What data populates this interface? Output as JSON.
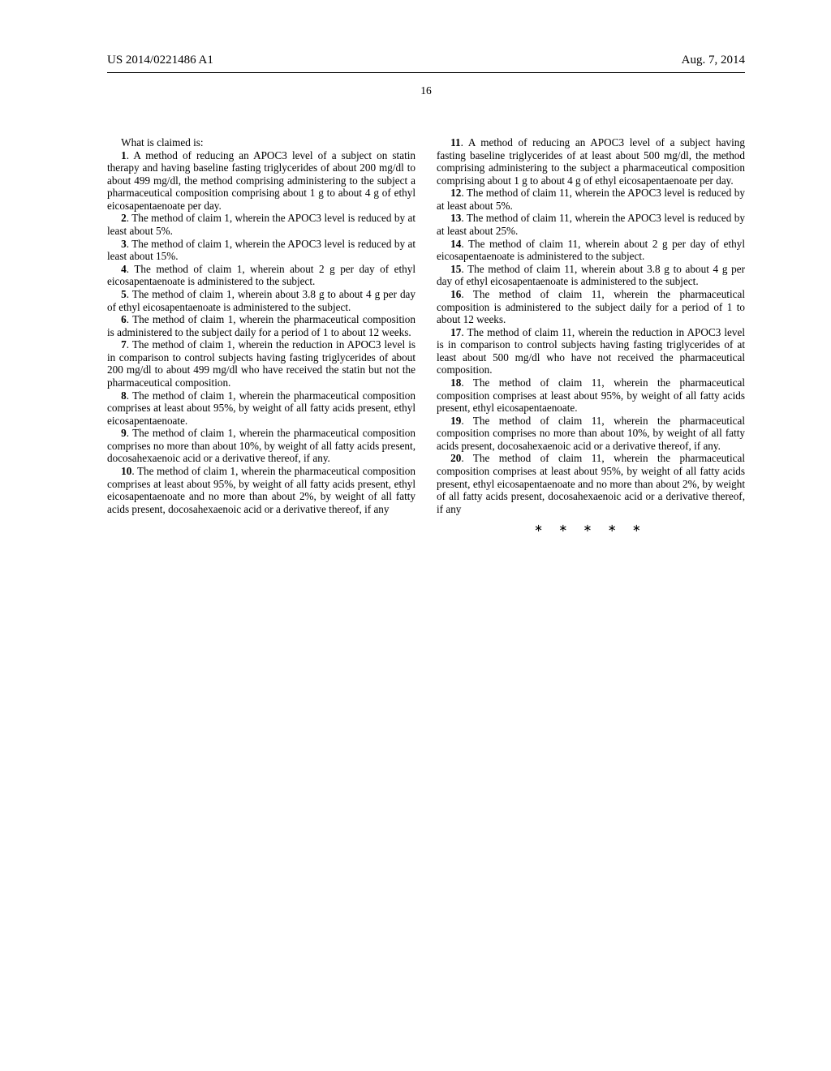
{
  "header": {
    "pub_number": "US 2014/0221486 A1",
    "date": "Aug. 7, 2014"
  },
  "page_number": "16",
  "intro": "What is claimed is:",
  "claims": [
    {
      "n": "1",
      "t": ". A method of reducing an APOC3 level of a subject on statin therapy and having baseline fasting triglycerides of about 200 mg/dl to about 499 mg/dl, the method comprising administering to the subject a pharmaceutical composition comprising about 1 g to about 4 g of ethyl eicosapentaenoate per day."
    },
    {
      "n": "2",
      "t": ". The method of claim 1, wherein the APOC3 level is reduced by at least about 5%."
    },
    {
      "n": "3",
      "t": ". The method of claim 1, wherein the APOC3 level is reduced by at least about 15%."
    },
    {
      "n": "4",
      "t": ". The method of claim 1, wherein about 2 g per day of ethyl eicosapentaenoate is administered to the subject."
    },
    {
      "n": "5",
      "t": ". The method of claim 1, wherein about 3.8 g to about 4 g per day of ethyl eicosapentaenoate is administered to the subject."
    },
    {
      "n": "6",
      "t": ". The method of claim 1, wherein the pharmaceutical composition is administered to the subject daily for a period of 1 to about 12 weeks."
    },
    {
      "n": "7",
      "t": ". The method of claim 1, wherein the reduction in APOC3 level is in comparison to control subjects having fasting triglycerides of about 200 mg/dl to about 499 mg/dl who have received the statin but not the pharmaceutical composition."
    },
    {
      "n": "8",
      "t": ". The method of claim 1, wherein the pharmaceutical composition comprises at least about 95%, by weight of all fatty acids present, ethyl eicosapentaenoate."
    },
    {
      "n": "9",
      "t": ". The method of claim 1, wherein the pharmaceutical composition comprises no more than about 10%, by weight of all fatty acids present, docosahexaenoic acid or a derivative thereof, if any."
    },
    {
      "n": "10",
      "t": ". The method of claim 1, wherein the pharmaceutical composition comprises at least about 95%, by weight of all fatty acids present, ethyl eicosapentaenoate and no more than about 2%, by weight of all fatty acids present, docosahexaenoic acid or a derivative thereof, if any"
    },
    {
      "n": "11",
      "t": ". A method of reducing an APOC3 level of a subject having fasting baseline triglycerides of at least about 500 mg/dl, the method comprising administering to the subject a pharmaceutical composition comprising about 1 g to about 4 g of ethyl eicosapentaenoate per day."
    },
    {
      "n": "12",
      "t": ". The method of claim 11, wherein the APOC3 level is reduced by at least about 5%."
    },
    {
      "n": "13",
      "t": ". The method of claim 11, wherein the APOC3 level is reduced by at least about 25%."
    },
    {
      "n": "14",
      "t": ". The method of claim 11, wherein about 2 g per day of ethyl eicosapentaenoate is administered to the subject."
    },
    {
      "n": "15",
      "t": ". The method of claim 11, wherein about 3.8 g to about 4 g per day of ethyl eicosapentaenoate is administered to the subject."
    },
    {
      "n": "16",
      "t": ". The method of claim 11, wherein the pharmaceutical composition is administered to the subject daily for a period of 1 to about 12 weeks."
    },
    {
      "n": "17",
      "t": ". The method of claim 11, wherein the reduction in APOC3 level is in comparison to control subjects having fasting triglycerides of at least about 500 mg/dl who have not received the pharmaceutical composition."
    },
    {
      "n": "18",
      "t": ". The method of claim 11, wherein the pharmaceutical composition comprises at least about 95%, by weight of all fatty acids present, ethyl eicosapentaenoate."
    },
    {
      "n": "19",
      "t": ". The method of claim 11, wherein the pharmaceutical composition comprises no more than about 10%, by weight of all fatty acids present, docosahexaenoic acid or a derivative thereof, if any."
    },
    {
      "n": "20",
      "t": ". The method of claim 11, wherein the pharmaceutical composition comprises at least about 95%, by weight of all fatty acids present, ethyl eicosapentaenoate and no more than about 2%, by weight of all fatty acids present, docosahexaenoic acid or a derivative thereof, if any"
    }
  ],
  "end_marks": "∗ ∗ ∗ ∗ ∗"
}
